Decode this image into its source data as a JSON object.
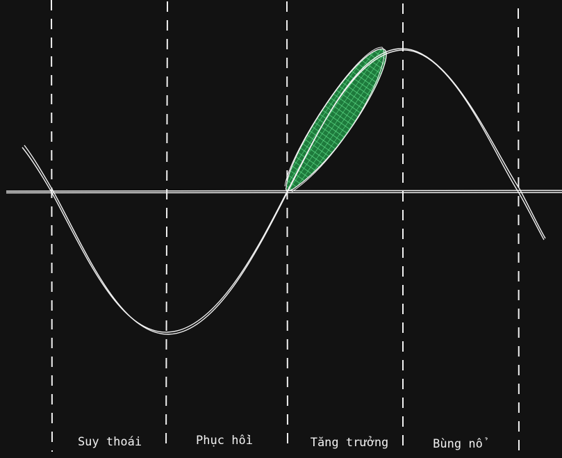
{
  "diagram": {
    "type": "economic-cycle-sketch",
    "colors": {
      "background": "#121212",
      "stroke": "#f2f2f2",
      "highlight_fill": "#1e7a3c",
      "highlight_hatch": "#5fe08a"
    },
    "phases": [
      {
        "id": "recession",
        "label": "Suy thoái"
      },
      {
        "id": "recovery",
        "label": "Phục hồi"
      },
      {
        "id": "growth",
        "label": "Tăng trưởng"
      },
      {
        "id": "boom",
        "label": "Bùng nổ"
      }
    ],
    "highlighted_phase": "growth"
  }
}
